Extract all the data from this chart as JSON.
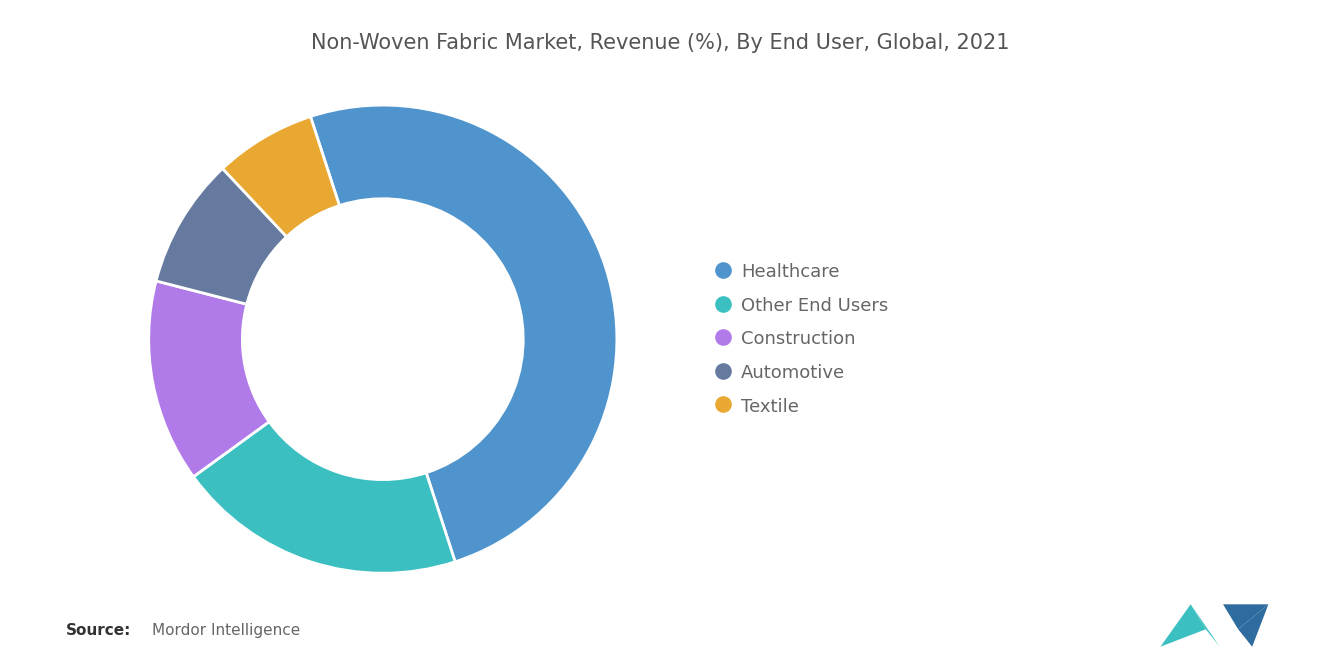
{
  "title": "Non-Woven Fabric Market, Revenue (%), By End User, Global, 2021",
  "segments": [
    "Healthcare",
    "Other End Users",
    "Construction",
    "Automotive",
    "Textile"
  ],
  "values": [
    50,
    20,
    14,
    9,
    7
  ],
  "colors": [
    "#4F94CD",
    "#3BBFC0",
    "#B07BE8",
    "#667AA0",
    "#E8A832"
  ],
  "background_color": "#ffffff",
  "title_fontsize": 15,
  "source_label": "Source:",
  "source_value": "  Mordor Intelligence",
  "legend_fontsize": 13,
  "donut_width": 0.4,
  "start_angle": 108,
  "counterclock": false
}
